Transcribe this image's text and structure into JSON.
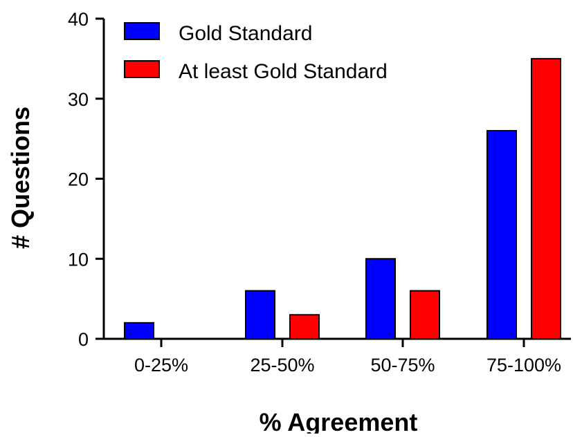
{
  "chart_data": {
    "type": "bar",
    "categories": [
      "0-25%",
      "25-50%",
      "50-75%",
      "75-100%"
    ],
    "series": [
      {
        "name": "Gold Standard",
        "values": [
          2,
          6,
          10,
          26
        ],
        "color": "#0000ff"
      },
      {
        "name": "At least Gold Standard",
        "values": [
          0,
          3,
          6,
          35
        ],
        "color": "#ff0000"
      }
    ],
    "xlabel": "% Agreement",
    "ylabel": "# Questions",
    "ylim": [
      0,
      40
    ],
    "yticks": [
      0,
      10,
      20,
      30,
      40
    ],
    "grid": false,
    "legend_position": "top-left"
  }
}
